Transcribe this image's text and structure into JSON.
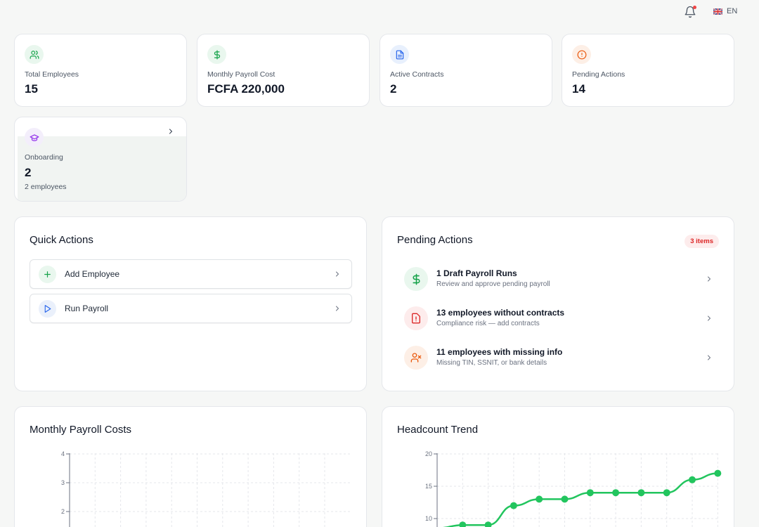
{
  "topbar": {
    "bell_icon": "bell-icon",
    "language": "EN",
    "flag_icon": "uk-flag-icon"
  },
  "stats": [
    {
      "label": "Total Employees",
      "value": "15",
      "icon": "users-icon",
      "color": "#16a34a",
      "bg": "#e9f7ee"
    },
    {
      "label": "Monthly Payroll Cost",
      "value": "FCFA 220,000",
      "icon": "dollar-icon",
      "color": "#16a34a",
      "bg": "#e9f7ee"
    },
    {
      "label": "Active Contracts",
      "value": "2",
      "icon": "document-icon",
      "color": "#2563eb",
      "bg": "#e8f0fd"
    },
    {
      "label": "Pending Actions",
      "value": "14",
      "icon": "alert-circle-icon",
      "color": "#ea580c",
      "bg": "#fdefe6"
    }
  ],
  "onboarding": {
    "label": "Onboarding",
    "value": "2",
    "sub": "2 employees",
    "icon": "graduation-cap-icon",
    "color": "#9333ea"
  },
  "quick_actions": {
    "title": "Quick Actions",
    "items": [
      {
        "label": "Add Employee",
        "icon": "plus-icon",
        "color": "#16a34a",
        "bg": "#e9f7ee"
      },
      {
        "label": "Run Payroll",
        "icon": "play-icon",
        "color": "#2563eb",
        "bg": "#eaf0fb"
      }
    ]
  },
  "pending_actions": {
    "title": "Pending Actions",
    "badge": "3 items",
    "items": [
      {
        "title": "1 Draft Payroll Runs",
        "subtitle": "Review and approve pending payroll",
        "icon": "dollar-icon",
        "color": "#16a34a",
        "bg": "#e9f7ee"
      },
      {
        "title": "13 employees without contracts",
        "subtitle": "Compliance risk — add contracts",
        "icon": "file-alert-icon",
        "color": "#dc2626",
        "bg": "#fdecec"
      },
      {
        "title": "11 employees with missing info",
        "subtitle": "Missing TIN, SSNIT, or bank details",
        "icon": "user-x-icon",
        "color": "#ea580c",
        "bg": "#fdefe6"
      }
    ]
  },
  "chart_data": [
    {
      "type": "bar",
      "title": "Monthly Payroll Costs",
      "yticks": [
        "4",
        "3",
        "2"
      ],
      "ylim": [
        0,
        4
      ],
      "grid": true
    },
    {
      "type": "line",
      "title": "Headcount Trend",
      "yticks": [
        "20",
        "15",
        "10"
      ],
      "ylim": [
        0,
        20
      ],
      "grid": true,
      "color": "#22c55e",
      "values": [
        8.5,
        9,
        9,
        12,
        13,
        13,
        14,
        14,
        14,
        14,
        16,
        17
      ]
    }
  ]
}
